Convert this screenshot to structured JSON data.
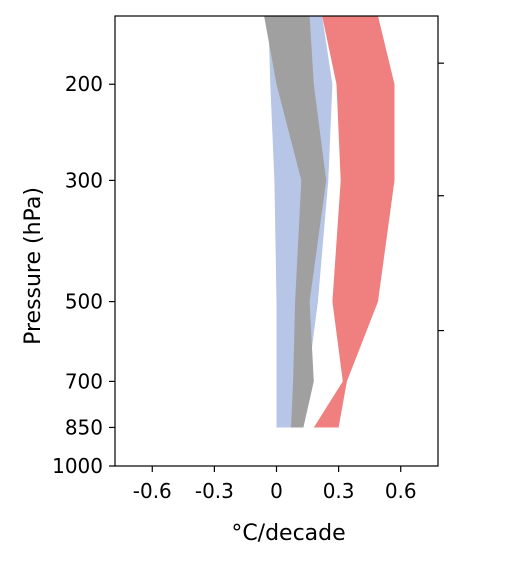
{
  "chart_data": {
    "type": "area",
    "orientation": "vertical-profile",
    "xlabel": "°C/decade",
    "ylabel": "Pressure (hPa)",
    "xlim": [
      -0.78,
      0.78
    ],
    "x_ticks": [
      -0.6,
      -0.3,
      0,
      0.3,
      0.6
    ],
    "x_tick_labels": [
      "-0.6",
      "-0.3",
      "0",
      "0.3",
      "0.6"
    ],
    "y_scale": "log",
    "y_inverted": true,
    "ylim": [
      1000,
      150
    ],
    "y_ticks": [
      200,
      300,
      500,
      700,
      850,
      1000
    ],
    "y_tick_labels": [
      "200",
      "300",
      "500",
      "700",
      "850",
      "1000"
    ],
    "right_axis_ticks_hpa": [
      183,
      320,
      565
    ],
    "legend": "none",
    "grid": false,
    "series": [
      {
        "color": "#b7c6e6",
        "pressure": [
          150,
          200,
          300,
          500,
          700,
          850
        ],
        "lower": [
          -0.04,
          -0.03,
          -0.01,
          0.0,
          0.0,
          0.0
        ],
        "upper": [
          0.22,
          0.27,
          0.25,
          0.2,
          0.15,
          0.13
        ]
      },
      {
        "color": "#a0a0a0",
        "pressure": [
          150,
          200,
          300,
          500,
          700,
          850
        ],
        "lower": [
          -0.06,
          0.0,
          0.12,
          0.09,
          0.08,
          0.07
        ],
        "upper": [
          0.16,
          0.18,
          0.24,
          0.16,
          0.18,
          0.13
        ]
      },
      {
        "color": "#f08080",
        "pressure": [
          150,
          200,
          300,
          500,
          700,
          850
        ],
        "lower": [
          0.22,
          0.29,
          0.31,
          0.27,
          0.32,
          0.18
        ],
        "upper": [
          0.49,
          0.57,
          0.57,
          0.49,
          0.34,
          0.3
        ]
      }
    ]
  }
}
